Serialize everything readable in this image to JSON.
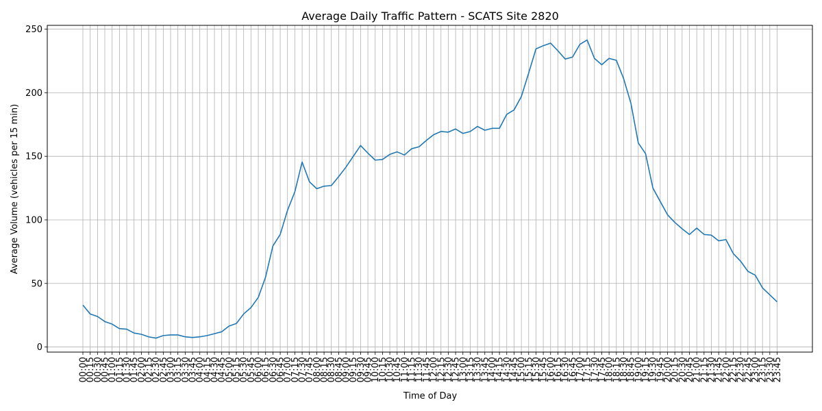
{
  "chart_data": {
    "type": "line",
    "title": "Average Daily Traffic Pattern - SCATS Site 2820",
    "xlabel": "Time of Day",
    "ylabel": "Average Volume (vehicles per 15 min)",
    "ylim": [
      -4,
      253
    ],
    "yticks": [
      0,
      50,
      100,
      150,
      200,
      250
    ],
    "grid": true,
    "series_color": "#1f77b4",
    "categories": [
      "00:00",
      "00:15",
      "00:30",
      "00:45",
      "01:00",
      "01:15",
      "01:30",
      "01:45",
      "02:00",
      "02:15",
      "02:30",
      "02:45",
      "03:00",
      "03:15",
      "03:30",
      "03:45",
      "04:00",
      "04:15",
      "04:30",
      "04:45",
      "05:00",
      "05:15",
      "05:30",
      "05:45",
      "06:00",
      "06:15",
      "06:30",
      "06:45",
      "07:00",
      "07:15",
      "07:30",
      "07:45",
      "08:00",
      "08:15",
      "08:30",
      "08:45",
      "09:00",
      "09:15",
      "09:30",
      "09:45",
      "10:00",
      "10:15",
      "10:30",
      "10:45",
      "11:00",
      "11:15",
      "11:30",
      "11:45",
      "12:00",
      "12:15",
      "12:30",
      "12:45",
      "13:00",
      "13:15",
      "13:30",
      "13:45",
      "14:00",
      "14:15",
      "14:30",
      "14:45",
      "15:00",
      "15:15",
      "15:30",
      "15:45",
      "16:00",
      "16:15",
      "16:30",
      "16:45",
      "17:00",
      "17:15",
      "17:30",
      "17:45",
      "18:00",
      "18:15",
      "18:30",
      "18:45",
      "19:00",
      "19:15",
      "19:30",
      "19:45",
      "20:00",
      "20:15",
      "20:30",
      "20:45",
      "21:00",
      "21:15",
      "21:30",
      "21:45",
      "22:00",
      "22:15",
      "22:30",
      "22:45",
      "23:00",
      "23:15",
      "23:30",
      "23:45"
    ],
    "values": [
      33,
      26,
      24,
      20,
      18,
      14.5,
      14,
      11,
      10,
      8,
      7,
      9,
      9.5,
      9.5,
      8,
      7.5,
      8,
      9,
      10.5,
      12,
      16.5,
      18.5,
      26,
      31,
      39,
      55,
      79.5,
      88.5,
      107.5,
      122,
      145.5,
      130,
      124.5,
      126.5,
      127,
      134,
      141.5,
      150,
      158.5,
      152.5,
      147,
      147.5,
      151.5,
      153.5,
      151,
      156,
      157.5,
      162.5,
      167,
      169.5,
      169,
      171.5,
      168,
      169.5,
      173.5,
      170.5,
      172,
      172,
      183,
      186.5,
      197,
      215.5,
      234.5,
      237,
      239,
      233,
      226.5,
      228,
      238,
      241.5,
      227,
      222,
      227,
      225.5,
      211,
      191.5,
      160.5,
      152,
      125,
      114.5,
      104,
      98,
      93,
      88.5,
      93.5,
      88.5,
      88,
      83.5,
      84.5,
      73.5,
      67.5,
      59.5,
      56.5,
      46.5,
      41,
      35.5
    ]
  }
}
